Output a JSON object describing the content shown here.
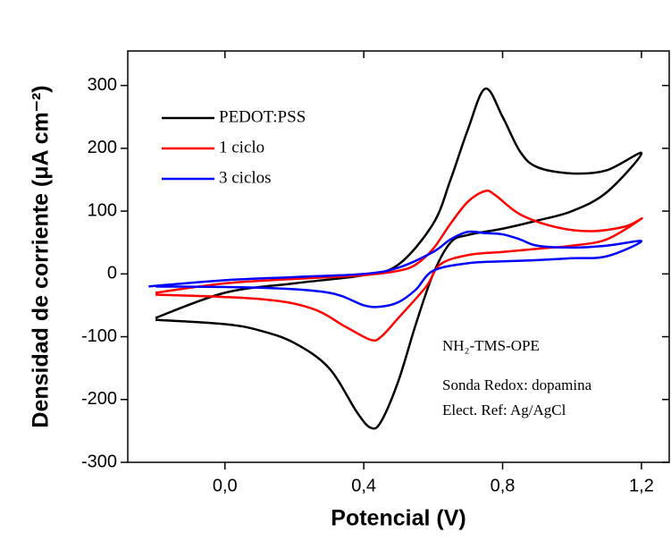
{
  "chart_data": {
    "type": "line",
    "xlabel": "Potencial (V)",
    "ylabel": "Densidad de corriente (μA cm⁻²)",
    "xlim": [
      -0.28,
      1.28
    ],
    "ylim": [
      -300,
      355
    ],
    "xticks": [
      {
        "value": 0,
        "label": "0,0"
      },
      {
        "value": 0.4,
        "label": "0,4"
      },
      {
        "value": 0.8,
        "label": "0,8"
      },
      {
        "value": 1.2,
        "label": "1,2"
      }
    ],
    "yticks": [
      -300,
      -200,
      -100,
      0,
      100,
      200,
      300
    ],
    "legend": "upper left",
    "annotations": [
      "NH₂-TMS-OPE",
      "Sonda Redox: dopamina",
      "Elect. Ref: Ag/AgCl"
    ],
    "series": [
      {
        "name": "PEDOT:PSS",
        "color": "#000000",
        "x": [
          -0.2,
          0.0,
          0.2,
          0.4,
          0.5,
          0.6,
          0.65,
          0.7,
          0.75,
          0.8,
          0.85,
          0.9,
          1.0,
          1.1,
          1.2,
          1.1,
          1.0,
          0.9,
          0.8,
          0.7,
          0.65,
          0.6,
          0.55,
          0.5,
          0.45,
          0.42,
          0.38,
          0.3,
          0.2,
          0.1,
          0.0,
          -0.2
        ],
        "values": [
          -70,
          -30,
          -15,
          -2,
          15,
          80,
          150,
          230,
          295,
          250,
          195,
          170,
          160,
          165,
          192,
          130,
          100,
          85,
          72,
          62,
          50,
          0,
          -80,
          -170,
          -235,
          -245,
          -220,
          -150,
          -110,
          -90,
          -80,
          -73
        ]
      },
      {
        "name": "1 ciclo",
        "color": "#ff0000",
        "x": [
          -0.2,
          0.0,
          0.2,
          0.4,
          0.5,
          0.55,
          0.6,
          0.65,
          0.7,
          0.75,
          0.78,
          0.85,
          0.95,
          1.05,
          1.15,
          1.2,
          1.1,
          1.0,
          0.9,
          0.8,
          0.7,
          0.62,
          0.58,
          0.5,
          0.45,
          0.42,
          0.35,
          0.25,
          0.1,
          -0.2
        ],
        "values": [
          -30,
          -15,
          -8,
          -2,
          5,
          15,
          40,
          80,
          115,
          132,
          125,
          95,
          75,
          68,
          75,
          88,
          55,
          45,
          40,
          35,
          30,
          15,
          -20,
          -70,
          -100,
          -105,
          -85,
          -55,
          -40,
          -33
        ]
      },
      {
        "name": "3 ciclos",
        "color": "#0000ff",
        "x": [
          -0.22,
          0.0,
          0.2,
          0.4,
          0.5,
          0.6,
          0.65,
          0.7,
          0.75,
          0.8,
          0.85,
          0.9,
          1.0,
          1.1,
          1.2,
          1.1,
          1.0,
          0.9,
          0.8,
          0.7,
          0.6,
          0.55,
          0.5,
          0.45,
          0.4,
          0.3,
          0.1,
          -0.2
        ],
        "values": [
          -20,
          -10,
          -5,
          0,
          10,
          35,
          55,
          67,
          65,
          63,
          55,
          45,
          42,
          45,
          52,
          28,
          25,
          22,
          20,
          17,
          5,
          -25,
          -45,
          -52,
          -50,
          -30,
          -22,
          -20
        ]
      }
    ]
  }
}
